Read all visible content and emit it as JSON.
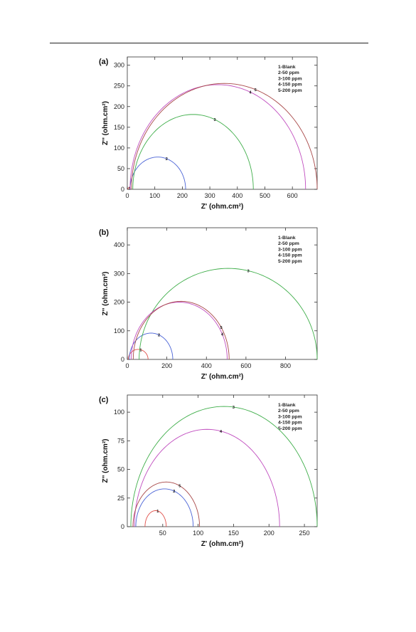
{
  "chart_data": [
    {
      "type": "line",
      "panel_label": "(a)",
      "xlabel": "Z' (ohm.cm²)",
      "ylabel": "Z'' (ohm.cm²)",
      "xlim": [
        0,
        690
      ],
      "ylim": [
        0,
        320
      ],
      "x_ticks": [
        0,
        100,
        200,
        300,
        400,
        500,
        600
      ],
      "y_ticks": [
        0,
        50,
        100,
        150,
        200,
        250,
        300
      ],
      "legend": [
        "1-Blank",
        "2-50 ppm",
        "3-100 ppm",
        "4-150 ppm",
        "5-200 ppm"
      ],
      "legend_position": "top-right",
      "series": [
        {
          "name": "1-Blank",
          "color": "#e0504a",
          "start": 2,
          "end": 9,
          "peak_y": 4,
          "label_number": "1",
          "label_x": 8
        },
        {
          "name": "2-50 ppm",
          "color": "#4a63d6",
          "start": 10,
          "end": 212,
          "peak_y": 78,
          "label_number": "2",
          "label_x": 143
        },
        {
          "name": "3-100 ppm",
          "color": "#3fae4a",
          "start": 20,
          "end": 458,
          "peak_y": 181,
          "label_number": "3",
          "label_x": 318
        },
        {
          "name": "4-150 ppm",
          "color": "#c04dbf",
          "start": 10,
          "end": 648,
          "peak_y": 253,
          "label_number": "4",
          "label_x": 447
        },
        {
          "name": "5-200 ppm",
          "color": "#a84848",
          "start": 15,
          "end": 690,
          "peak_y": 256,
          "label_number": "5",
          "label_x": 466
        }
      ]
    },
    {
      "type": "line",
      "panel_label": "(b)",
      "xlabel": "Z' (ohm.cm²)",
      "ylabel": "Z'' (ohm.cm²)",
      "xlim": [
        0,
        960
      ],
      "ylim": [
        0,
        460
      ],
      "x_ticks": [
        0,
        200,
        400,
        600,
        800
      ],
      "y_ticks": [
        0,
        100,
        200,
        300,
        400
      ],
      "legend": [
        "1-Blank",
        "2-50 ppm",
        "3-100 ppm",
        "4-150 ppm",
        "5-200 ppm"
      ],
      "legend_position": "top-right",
      "series": [
        {
          "name": "1-Blank",
          "color": "#e0504a",
          "start": 5,
          "end": 105,
          "peak_y": 35,
          "label_number": "1",
          "label_x": 68
        },
        {
          "name": "2-50 ppm",
          "color": "#4a63d6",
          "start": 10,
          "end": 230,
          "peak_y": 92,
          "label_number": "2",
          "label_x": 160
        },
        {
          "name": "3-100 ppm",
          "color": "#3fae4a",
          "start": 60,
          "end": 960,
          "peak_y": 318,
          "label_number": "3",
          "label_x": 612
        },
        {
          "name": "4-150 ppm",
          "color": "#c04dbf",
          "start": 20,
          "end": 505,
          "peak_y": 200,
          "label_number": "4",
          "label_x": 480
        },
        {
          "name": "5-200 ppm",
          "color": "#a84848",
          "start": 30,
          "end": 515,
          "peak_y": 203,
          "label_number": "5",
          "label_x": 475
        }
      ]
    },
    {
      "type": "line",
      "panel_label": "(c)",
      "xlabel": "Z' (ohm.cm²)",
      "ylabel": "Z'' (ohm.cm²)",
      "xlim": [
        0,
        268
      ],
      "ylim": [
        0,
        115
      ],
      "x_ticks": [
        50,
        100,
        150,
        200,
        250
      ],
      "y_ticks": [
        0,
        25,
        50,
        75,
        100
      ],
      "legend": [
        "1-Blank",
        "2-50 ppm",
        "3-100 ppm",
        "4-150 ppm",
        "5-200 ppm"
      ],
      "legend_position": "top-right",
      "series": [
        {
          "name": "1-Blank",
          "color": "#e0504a",
          "start": 25,
          "end": 55,
          "peak_y": 14,
          "label_number": "1",
          "label_x": 43
        },
        {
          "name": "2-50 ppm",
          "color": "#4a63d6",
          "start": 12,
          "end": 93,
          "peak_y": 33,
          "label_number": "2",
          "label_x": 66
        },
        {
          "name": "3-100 ppm",
          "color": "#3fae4a",
          "start": 5,
          "end": 268,
          "peak_y": 105,
          "label_number": "3",
          "label_x": 150
        },
        {
          "name": "4-150 ppm",
          "color": "#c04dbf",
          "start": 10,
          "end": 215,
          "peak_y": 85,
          "label_number": "4",
          "label_x": 132
        },
        {
          "name": "5-200 ppm",
          "color": "#a84848",
          "start": 8,
          "end": 102,
          "peak_y": 39,
          "label_number": "5",
          "label_x": 74
        }
      ]
    }
  ]
}
